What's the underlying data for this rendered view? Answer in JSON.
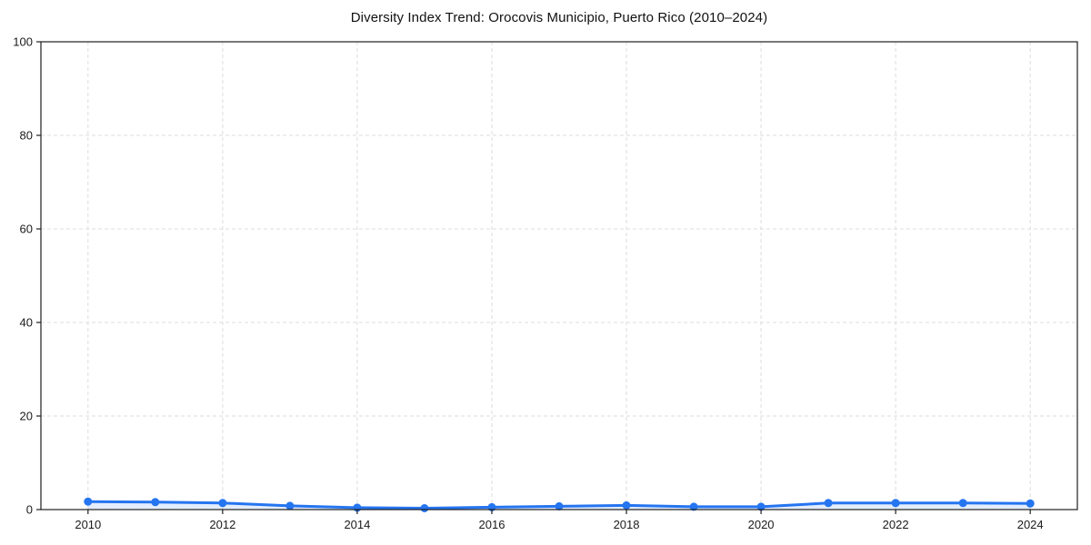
{
  "chart_data": {
    "type": "line",
    "title": "Diversity Index Trend: Orocovis Municipio, Puerto Rico (2010–2024)",
    "xlabel": "",
    "ylabel": "",
    "x": [
      2010,
      2011,
      2012,
      2013,
      2014,
      2015,
      2016,
      2017,
      2018,
      2019,
      2020,
      2021,
      2022,
      2023,
      2024
    ],
    "series": [
      {
        "name": "Diversity Index",
        "values": [
          1.7,
          1.6,
          1.4,
          0.8,
          0.4,
          0.3,
          0.5,
          0.7,
          0.9,
          0.6,
          0.6,
          1.4,
          1.4,
          1.4,
          1.3
        ]
      }
    ],
    "ylim": [
      0,
      100
    ],
    "yticks": [
      0,
      20,
      40,
      60,
      80,
      100
    ],
    "xticks": [
      2010,
      2012,
      2014,
      2016,
      2018,
      2020,
      2022,
      2024
    ],
    "x_margin_frac": 0.05,
    "grid": "dashed",
    "legend": "none",
    "marker": "circle",
    "colors": {
      "line": "#2575f0",
      "area_fill": "rgba(37,117,240,0.13)",
      "grid": "#dcdcdc",
      "axis": "#1f1f1f",
      "text": "#1a1a1a",
      "background": "#ffffff"
    }
  }
}
